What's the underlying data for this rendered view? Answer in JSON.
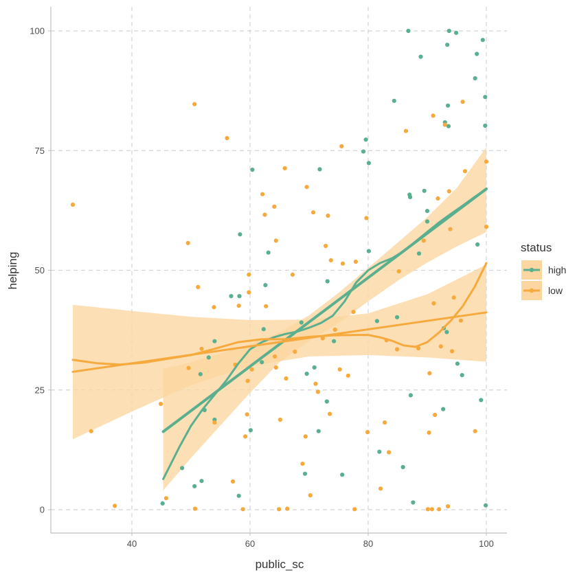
{
  "chart_data": {
    "type": "scatter",
    "xlabel": "public_sc",
    "ylabel": "helping",
    "xlim": [
      26,
      103
    ],
    "ylim": [
      -5,
      105
    ],
    "xticks": [
      40,
      60,
      80,
      100
    ],
    "yticks": [
      0,
      25,
      50,
      75,
      100
    ],
    "grid": true,
    "legend": {
      "title": "status",
      "position": "right"
    },
    "colors": {
      "high": "#5aaf8f",
      "low": "#f6a93c",
      "ribbon": "#fbd6a0",
      "grid": "#d4d4d4",
      "axis": "#bdbdbd"
    },
    "series": [
      {
        "name": "high",
        "color": "#5aaf8f",
        "points": [
          [
            45.2,
            1.3
          ],
          [
            48.5,
            8.7
          ],
          [
            50.6,
            4.9
          ],
          [
            51.6,
            28.3
          ],
          [
            51.8,
            6.0
          ],
          [
            52.3,
            20.8
          ],
          [
            53.0,
            31.8
          ],
          [
            54.0,
            35.2
          ],
          [
            54.0,
            18.8
          ],
          [
            56.8,
            44.6
          ],
          [
            58.1,
            2.9
          ],
          [
            58.2,
            44.6
          ],
          [
            58.3,
            57.5
          ],
          [
            60.1,
            16.6
          ],
          [
            60.4,
            71.0
          ],
          [
            62.0,
            30.8
          ],
          [
            62.3,
            37.7
          ],
          [
            62.6,
            46.9
          ],
          [
            63.1,
            53.7
          ],
          [
            68.7,
            39.1
          ],
          [
            69.3,
            7.5
          ],
          [
            69.6,
            28.4
          ],
          [
            70.9,
            29.7
          ],
          [
            71.6,
            16.4
          ],
          [
            71.8,
            71.1
          ],
          [
            73.0,
            22.6
          ],
          [
            73.1,
            47.7
          ],
          [
            74.2,
            35.2
          ],
          [
            75.6,
            7.3
          ],
          [
            79.2,
            74.8
          ],
          [
            79.6,
            77.3
          ],
          [
            80.1,
            72.4
          ],
          [
            80.1,
            54.0
          ],
          [
            81.5,
            39.4
          ],
          [
            81.9,
            12.1
          ],
          [
            84.4,
            85.4
          ],
          [
            84.9,
            40.2
          ],
          [
            85.9,
            8.9
          ],
          [
            86.8,
            100.0
          ],
          [
            87.0,
            65.8
          ],
          [
            87.1,
            65.3
          ],
          [
            87.2,
            23.9
          ],
          [
            87.6,
            1.5
          ],
          [
            88.6,
            53.5
          ],
          [
            88.9,
            94.6
          ],
          [
            89.5,
            66.6
          ],
          [
            90.0,
            60.2
          ],
          [
            90.0,
            62.4
          ],
          [
            92.7,
            21.0
          ],
          [
            92.8,
            37.9
          ],
          [
            93.0,
            80.9
          ],
          [
            93.3,
            37.1
          ],
          [
            93.4,
            97.1
          ],
          [
            93.5,
            84.4
          ],
          [
            93.6,
            80.1
          ],
          [
            93.7,
            100.0
          ],
          [
            94.9,
            99.6
          ],
          [
            95.1,
            30.5
          ],
          [
            95.9,
            28.1
          ],
          [
            98.1,
            90.1
          ],
          [
            98.4,
            95.2
          ],
          [
            98.5,
            55.4
          ],
          [
            99.1,
            22.9
          ],
          [
            99.4,
            98.1
          ],
          [
            99.8,
            86.2
          ],
          [
            99.8,
            80.2
          ],
          [
            99.9,
            0.9
          ]
        ],
        "fit_linear": [
          [
            45.3,
            16.3
          ],
          [
            100.0,
            67.0
          ]
        ],
        "fit_smooth": [
          [
            45.3,
            6.4
          ],
          [
            48.0,
            13.0
          ],
          [
            50.0,
            17.5
          ],
          [
            52.0,
            21.0
          ],
          [
            54.0,
            24.0
          ],
          [
            56.0,
            27.0
          ],
          [
            58.0,
            30.5
          ],
          [
            60.0,
            33.5
          ],
          [
            62.0,
            35.0
          ],
          [
            64.0,
            36.0
          ],
          [
            66.0,
            36.7
          ],
          [
            68.0,
            37.2
          ],
          [
            70.0,
            38.0
          ],
          [
            72.0,
            39.0
          ],
          [
            74.0,
            40.5
          ],
          [
            76.0,
            43.5
          ],
          [
            78.0,
            47.5
          ],
          [
            80.0,
            50.0
          ],
          [
            82.0,
            51.5
          ],
          [
            84.0,
            52.5
          ],
          [
            86.0,
            54.0
          ],
          [
            88.0,
            56.0
          ],
          [
            90.0,
            58.0
          ],
          [
            92.0,
            60.0
          ],
          [
            94.0,
            61.8
          ],
          [
            96.0,
            63.5
          ],
          [
            98.0,
            65.3
          ],
          [
            100.0,
            67.0
          ]
        ],
        "band": {
          "x": [
            45.3,
            50,
            55,
            60,
            65,
            70,
            75,
            80,
            85,
            90,
            95,
            100
          ],
          "upper": [
            29.4,
            30.8,
            32.6,
            34.6,
            37.0,
            40.6,
            45.3,
            50.5,
            55.8,
            61.1,
            67.2,
            75.7
          ],
          "lower": [
            4.0,
            10.8,
            17.6,
            24.4,
            30.8,
            35.2,
            39.0,
            43.5,
            47.8,
            51.6,
            55.0,
            58.0
          ]
        }
      },
      {
        "name": "low",
        "color": "#f6a93c",
        "points": [
          [
            30.0,
            63.7
          ],
          [
            33.1,
            16.4
          ],
          [
            37.1,
            0.8
          ],
          [
            44.9,
            22.1
          ],
          [
            45.8,
            2.4
          ],
          [
            49.5,
            55.7
          ],
          [
            49.6,
            29.6
          ],
          [
            50.6,
            84.7
          ],
          [
            50.7,
            0.2
          ],
          [
            51.2,
            46.5
          ],
          [
            51.8,
            33.6
          ],
          [
            53.9,
            42.3
          ],
          [
            54.0,
            18.2
          ],
          [
            56.1,
            77.6
          ],
          [
            57.1,
            5.9
          ],
          [
            57.5,
            30.3
          ],
          [
            58.1,
            42.6
          ],
          [
            58.8,
            0.1
          ],
          [
            59.2,
            15.3
          ],
          [
            59.5,
            19.9
          ],
          [
            59.6,
            26.9
          ],
          [
            59.8,
            49.1
          ],
          [
            59.8,
            45.4
          ],
          [
            60.3,
            29.3
          ],
          [
            62.1,
            65.9
          ],
          [
            62.5,
            61.6
          ],
          [
            62.7,
            42.5
          ],
          [
            64.1,
            63.3
          ],
          [
            64.2,
            32.0
          ],
          [
            64.4,
            29.7
          ],
          [
            64.4,
            56.2
          ],
          [
            64.9,
            0.1
          ],
          [
            65.1,
            18.8
          ],
          [
            65.9,
            71.3
          ],
          [
            66.1,
            27.4
          ],
          [
            66.3,
            0.2
          ],
          [
            67.2,
            49.1
          ],
          [
            67.6,
            33.0
          ],
          [
            68.9,
            9.6
          ],
          [
            69.4,
            15.3
          ],
          [
            69.6,
            67.4
          ],
          [
            70.2,
            3.0
          ],
          [
            70.7,
            62.1
          ],
          [
            71.1,
            26.3
          ],
          [
            71.5,
            24.6
          ],
          [
            72.3,
            35.8
          ],
          [
            72.8,
            55.1
          ],
          [
            73.2,
            61.4
          ],
          [
            73.5,
            20.0
          ],
          [
            73.7,
            52.1
          ],
          [
            74.4,
            37.6
          ],
          [
            75.2,
            29.3
          ],
          [
            75.5,
            75.9
          ],
          [
            75.7,
            51.4
          ],
          [
            76.6,
            28.0
          ],
          [
            77.5,
            41.3
          ],
          [
            77.7,
            0.1
          ],
          [
            77.9,
            51.8
          ],
          [
            79.7,
            60.9
          ],
          [
            79.9,
            16.2
          ],
          [
            82.1,
            4.4
          ],
          [
            82.8,
            18.2
          ],
          [
            83.1,
            35.4
          ],
          [
            83.5,
            12.0
          ],
          [
            84.9,
            33.5
          ],
          [
            85.2,
            49.8
          ],
          [
            86.4,
            79.1
          ],
          [
            88.5,
            33.7
          ],
          [
            89.4,
            56.2
          ],
          [
            90.1,
            0.1
          ],
          [
            90.3,
            16.1
          ],
          [
            90.4,
            28.5
          ],
          [
            91.0,
            82.3
          ],
          [
            91.1,
            43.1
          ],
          [
            91.3,
            19.8
          ],
          [
            91.8,
            65.0
          ],
          [
            92.3,
            34.1
          ],
          [
            93.0,
            80.4
          ],
          [
            93.5,
            0.7
          ],
          [
            93.7,
            66.5
          ],
          [
            93.9,
            58.6
          ],
          [
            94.2,
            33.1
          ],
          [
            94.5,
            44.3
          ],
          [
            95.7,
            39.5
          ],
          [
            96.0,
            85.2
          ],
          [
            96.4,
            70.7
          ],
          [
            98.1,
            16.4
          ],
          [
            100.0,
            59.1
          ],
          [
            100.0,
            72.7
          ],
          [
            90.8,
            0.1
          ],
          [
            92.0,
            0.1
          ]
        ],
        "fit_linear": [
          [
            30.0,
            28.8
          ],
          [
            100.0,
            41.2
          ]
        ],
        "fit_smooth": [
          [
            30.0,
            31.3
          ],
          [
            34.0,
            30.6
          ],
          [
            38.0,
            30.3
          ],
          [
            42.0,
            30.7
          ],
          [
            46.0,
            31.5
          ],
          [
            50.0,
            32.3
          ],
          [
            54.0,
            33.6
          ],
          [
            58.0,
            35.0
          ],
          [
            62.0,
            35.6
          ],
          [
            66.0,
            35.6
          ],
          [
            70.0,
            36.1
          ],
          [
            74.0,
            36.4
          ],
          [
            78.0,
            36.5
          ],
          [
            80.0,
            36.5
          ],
          [
            82.0,
            36.0
          ],
          [
            84.0,
            35.3
          ],
          [
            86.0,
            34.3
          ],
          [
            88.0,
            34.0
          ],
          [
            90.0,
            35.0
          ],
          [
            92.0,
            37.0
          ],
          [
            94.0,
            39.5
          ],
          [
            96.0,
            42.5
          ],
          [
            98.0,
            46.5
          ],
          [
            100.0,
            51.5
          ]
        ],
        "band": {
          "x": [
            30,
            40,
            50,
            60,
            70,
            80,
            90,
            100
          ],
          "upper": [
            42.8,
            41.5,
            40.3,
            39.6,
            39.7,
            41.0,
            45.0,
            51.2
          ],
          "lower": [
            14.7,
            20.5,
            26.0,
            30.0,
            32.0,
            32.3,
            31.8,
            30.9
          ]
        }
      }
    ]
  }
}
